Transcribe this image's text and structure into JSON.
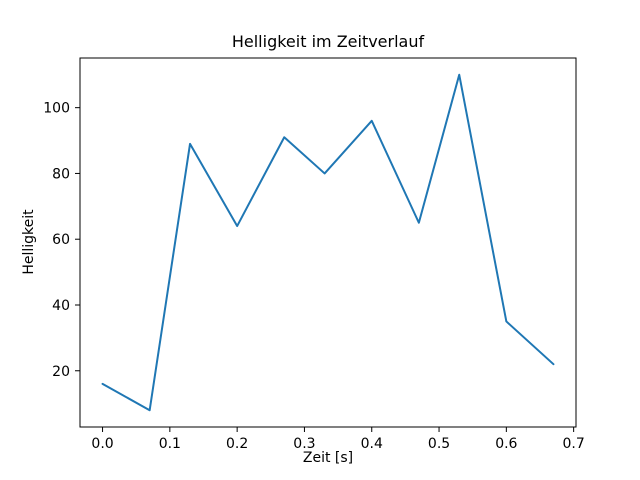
{
  "figure": {
    "background_color": "#ffffff",
    "text_color": "#000000"
  },
  "chart_data": {
    "type": "line",
    "title": "Helligkeit im Zeitverlauf",
    "xlabel": "Zeit [s]",
    "ylabel": "Helligkeit",
    "x": [
      0.0,
      0.07,
      0.13,
      0.2,
      0.27,
      0.33,
      0.4,
      0.47,
      0.53,
      0.6,
      0.67
    ],
    "y": [
      16,
      8,
      89,
      64,
      91,
      80,
      96,
      65,
      110,
      35,
      22
    ],
    "line_color": "#1f77b4",
    "xlim": [
      -0.0335,
      0.7035
    ],
    "ylim": [
      2.9,
      115.1
    ],
    "xticks": [
      0.0,
      0.1,
      0.2,
      0.3,
      0.4,
      0.5,
      0.6,
      0.7
    ],
    "xtick_labels": [
      "0.0",
      "0.1",
      "0.2",
      "0.3",
      "0.4",
      "0.5",
      "0.6",
      "0.7"
    ],
    "yticks": [
      20,
      40,
      60,
      80,
      100
    ],
    "ytick_labels": [
      "20",
      "40",
      "60",
      "80",
      "100"
    ],
    "grid": false,
    "legend": "none"
  }
}
